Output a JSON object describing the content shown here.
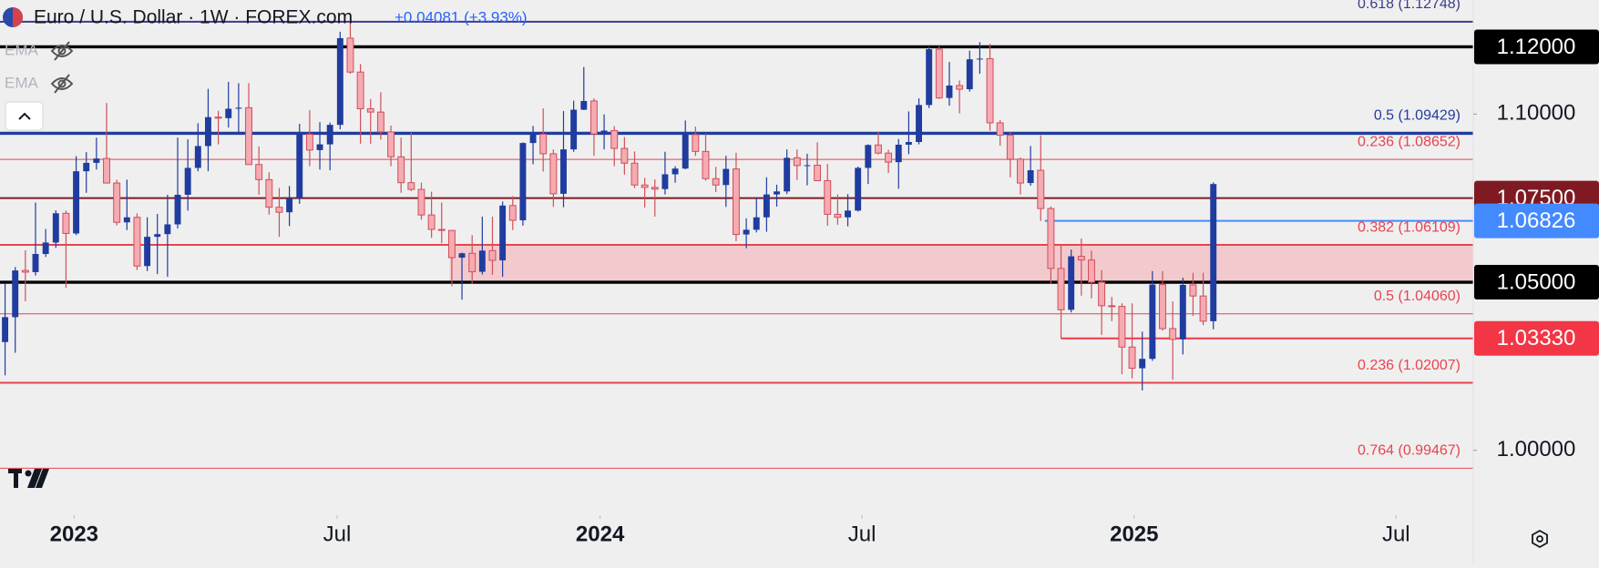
{
  "header": {
    "symbol": "Euro / U.S. Dollar · 1W · FOREX.com",
    "change": "+0.04081 (+3.93%)",
    "indicators": [
      "EMA",
      "EMA"
    ]
  },
  "chart_data": {
    "type": "candlestick",
    "x": [
      0,
      1,
      2,
      3,
      4,
      5,
      6,
      7,
      8,
      9,
      10,
      11,
      12,
      13,
      14,
      15,
      16,
      17,
      18,
      19,
      20,
      21,
      22,
      23,
      24,
      25,
      26,
      27,
      28,
      29,
      30,
      31,
      32,
      33,
      34,
      35,
      36,
      37,
      38,
      39,
      40,
      41,
      42,
      43,
      44,
      45,
      46,
      47,
      48,
      49,
      50,
      51,
      52,
      53,
      54,
      55,
      56,
      57,
      58,
      59,
      60,
      61,
      62,
      63,
      64,
      65,
      66,
      67,
      68,
      69,
      70,
      71,
      72,
      73,
      74,
      75,
      76,
      77,
      78,
      79,
      80,
      81,
      82,
      83,
      84,
      85,
      86,
      87,
      88,
      89,
      90,
      91,
      92,
      93,
      94,
      95,
      96,
      97,
      98,
      99,
      100,
      101,
      102,
      103,
      104,
      105,
      106,
      107,
      108,
      109,
      110,
      111,
      112,
      113,
      114,
      115,
      116,
      117,
      118,
      119
    ],
    "open": [
      1.0322,
      1.0396,
      1.0535,
      1.053,
      1.0584,
      1.0618,
      1.0705,
      1.0645,
      1.083,
      1.0855,
      1.0868,
      1.0795,
      1.0678,
      1.0693,
      1.0548,
      1.0635,
      1.0643,
      1.0672,
      1.076,
      1.084,
      1.0905,
      1.0991,
      1.0988,
      1.1016,
      1.1019,
      1.085,
      1.0805,
      1.0723,
      1.0708,
      1.075,
      1.094,
      1.0893,
      1.091,
      1.0968,
      1.1226,
      1.1125,
      1.1016,
      1.1006,
      1.0947,
      1.0873,
      1.0796,
      1.0776,
      1.07,
      1.0657,
      1.0654,
      1.0573,
      1.0586,
      1.0531,
      1.0594,
      1.0565,
      1.0728,
      1.0684,
      1.0914,
      1.094,
      1.0882,
      1.0763,
      1.0895,
      1.1013,
      1.1039,
      1.0941,
      1.0951,
      1.0898,
      1.0854,
      1.0789,
      1.0782,
      1.0777,
      1.0821,
      1.0838,
      1.0939,
      1.0889,
      1.0808,
      1.0789,
      1.0837,
      1.0642,
      1.0656,
      1.0693,
      1.0761,
      1.077,
      1.087,
      1.0847,
      1.0848,
      1.0802,
      1.0702,
      1.0693,
      1.0713,
      1.084,
      1.0908,
      1.0884,
      1.0857,
      1.0909,
      1.0917,
      1.1027,
      1.1193,
      1.1048,
      1.1085,
      1.1074,
      1.1163,
      1.1165,
      1.0974,
      1.0937,
      1.0866,
      1.0795,
      1.0833,
      1.0719,
      1.0541,
      1.0418,
      1.0577,
      1.0566,
      1.05,
      1.043,
      1.0428,
      1.0307,
      1.0244,
      1.0272,
      1.0493,
      1.0362,
      1.033,
      1.0492,
      1.0459,
      1.0384
    ],
    "high": [
      1.0497,
      1.0545,
      1.0595,
      1.0737,
      1.0658,
      1.0714,
      1.0713,
      1.0875,
      1.0887,
      1.093,
      1.1033,
      1.0805,
      1.0805,
      1.0705,
      1.0693,
      1.0703,
      1.076,
      1.093,
      1.0925,
      1.0973,
      1.1075,
      1.101,
      1.1096,
      1.1092,
      1.1092,
      1.0904,
      1.0827,
      1.078,
      1.0786,
      1.0971,
      1.1012,
      1.0976,
      1.0975,
      1.1245,
      1.1276,
      1.1149,
      1.1045,
      1.1065,
      1.0966,
      1.093,
      1.0945,
      1.0796,
      1.0769,
      1.0737,
      1.0655,
      1.0588,
      1.064,
      1.0695,
      1.0695,
      1.074,
      1.0756,
      1.0916,
      1.0965,
      1.1017,
      1.0895,
      1.1009,
      1.104,
      1.114,
      1.1047,
      1.0999,
      1.0964,
      1.0932,
      1.0889,
      1.081,
      1.0806,
      1.0888,
      1.0845,
      1.0981,
      1.0963,
      1.0942,
      1.0843,
      1.0876,
      1.0885,
      1.069,
      1.0753,
      1.0812,
      1.079,
      1.0895,
      1.0895,
      1.0882,
      1.0916,
      1.0852,
      1.0761,
      1.0762,
      1.0844,
      1.091,
      1.0948,
      1.0894,
      1.0926,
      1.1008,
      1.1047,
      1.1202,
      1.1202,
      1.1155,
      1.11,
      1.1189,
      1.1214,
      1.1209,
      1.0982,
      1.0947,
      1.0871,
      1.0905,
      1.0937,
      1.0725,
      1.0609,
      1.0597,
      1.063,
      1.0594,
      1.0536,
      1.0456,
      1.0437,
      1.0437,
      1.0353,
      1.0533,
      1.0533,
      1.0443,
      1.0513,
      1.0528,
      1.0528,
      1.0797
    ],
    "low": [
      1.0223,
      1.029,
      1.0443,
      1.052,
      1.0575,
      1.0602,
      1.0483,
      1.064,
      1.0766,
      1.0835,
      1.0795,
      1.0669,
      1.0655,
      1.0536,
      1.0533,
      1.0524,
      1.0516,
      1.066,
      1.0713,
      1.083,
      1.083,
      1.091,
      1.096,
      1.0942,
      1.085,
      1.076,
      1.0701,
      1.0635,
      1.0667,
      1.0733,
      1.0845,
      1.0835,
      1.0833,
      1.0955,
      1.112,
      1.0912,
      1.0912,
      1.0924,
      1.0845,
      1.0766,
      1.0771,
      1.0686,
      1.0632,
      1.0616,
      1.0488,
      1.0448,
      1.0496,
      1.0523,
      1.0522,
      1.0516,
      1.0655,
      1.0668,
      1.0851,
      1.0829,
      1.0724,
      1.0723,
      1.0888,
      1.1012,
      1.0876,
      1.0895,
      1.0845,
      1.082,
      1.078,
      1.0722,
      1.0695,
      1.0761,
      1.0796,
      1.0836,
      1.0876,
      1.0802,
      1.0768,
      1.0724,
      1.0622,
      1.0601,
      1.0648,
      1.065,
      1.0725,
      1.0762,
      1.0804,
      1.0788,
      1.0801,
      1.0668,
      1.0671,
      1.0666,
      1.071,
      1.0792,
      1.088,
      1.0825,
      1.0778,
      1.0881,
      1.091,
      1.1018,
      1.1045,
      1.1025,
      1.1002,
      1.1067,
      1.112,
      1.0951,
      1.0906,
      1.0812,
      1.0761,
      1.0787,
      1.0682,
      1.0496,
      1.0333,
      1.041,
      1.046,
      1.0452,
      1.0343,
      1.0384,
      1.0226,
      1.0214,
      1.0178,
      1.0266,
      1.0356,
      1.021,
      1.0285,
      1.04,
      1.0372,
      1.036
    ],
    "close": [
      1.0396,
      1.0535,
      1.053,
      1.0584,
      1.0618,
      1.0705,
      1.0645,
      1.083,
      1.0855,
      1.0868,
      1.0795,
      1.0678,
      1.0693,
      1.0548,
      1.0635,
      1.0643,
      1.0672,
      1.076,
      1.084,
      1.0905,
      1.0991,
      1.0988,
      1.1016,
      1.1019,
      1.085,
      1.0805,
      1.0723,
      1.0708,
      1.075,
      1.094,
      1.0893,
      1.091,
      1.0968,
      1.1226,
      1.1125,
      1.1016,
      1.1006,
      1.0947,
      1.0873,
      1.0796,
      1.0776,
      1.07,
      1.0657,
      1.0654,
      1.0573,
      1.0586,
      1.0531,
      1.0594,
      1.0565,
      1.0728,
      1.0684,
      1.0914,
      1.094,
      1.0882,
      1.0763,
      1.0895,
      1.1013,
      1.1039,
      1.0941,
      1.0951,
      1.0898,
      1.0854,
      1.0789,
      1.0782,
      1.0777,
      1.0821,
      1.0838,
      1.0939,
      1.0889,
      1.0808,
      1.0789,
      1.0837,
      1.0642,
      1.0656,
      1.0693,
      1.0761,
      1.077,
      1.087,
      1.0847,
      1.0848,
      1.0802,
      1.0702,
      1.0693,
      1.0713,
      1.084,
      1.0908,
      1.0884,
      1.0857,
      1.0909,
      1.0917,
      1.1027,
      1.1193,
      1.1048,
      1.1085,
      1.1074,
      1.1163,
      1.1165,
      1.0974,
      1.0937,
      1.0866,
      1.0795,
      1.0833,
      1.0719,
      1.0541,
      1.0418,
      1.0577,
      1.0566,
      1.05,
      1.043,
      1.0428,
      1.0307,
      1.0244,
      1.0272,
      1.0493,
      1.0362,
      1.033,
      1.0492,
      1.0459,
      1.0384,
      1.0792
    ],
    "up_color": "#1f3c9e",
    "down_color": "#f6aab1",
    "down_line": "#d04f5b",
    "xlim": [
      -0.5,
      144.6
    ],
    "xticks": [
      {
        "value": 6.8,
        "label": "2023"
      },
      {
        "value": 32.7,
        "label": "Jul"
      },
      {
        "value": 58.6,
        "label": "2024"
      },
      {
        "value": 84.4,
        "label": "Jul"
      },
      {
        "value": 111.2,
        "label": "2025"
      },
      {
        "value": 137,
        "label": "Jul"
      }
    ],
    "ylim": [
      0.98394,
      1.13394
    ],
    "yticks": [
      {
        "value": 1.0,
        "label": "1.00000"
      },
      {
        "value": 1.1,
        "label": "1.10000"
      }
    ],
    "grid": false,
    "zone": {
      "from": 1.05,
      "to": 1.06109,
      "x_from": 43.8,
      "color": "#f2c3c7"
    },
    "fib_levels": [
      {
        "value": 1.12748,
        "label": "0.618 (1.12748)",
        "color": "#3b3a8f",
        "style": "medium"
      },
      {
        "value": 1.09429,
        "label": "0.5 (1.09429)",
        "color": "#1f3c9e",
        "style": "thick"
      },
      {
        "value": 1.08652,
        "label": "0.236 (1.08652)",
        "color": "#e8434f",
        "style": "thin"
      },
      {
        "value": 1.06109,
        "label": "0.382 (1.06109)",
        "color": "#e8434f",
        "style": "medium"
      },
      {
        "value": 1.0406,
        "label": "0.5 (1.04060)",
        "color": "#e8434f",
        "style": "thin"
      },
      {
        "value": 1.02007,
        "label": "0.236 (1.02007)",
        "color": "#e8434f",
        "style": "medium"
      },
      {
        "value": 0.99467,
        "label": "0.764 (0.99467)",
        "color": "#e8434f",
        "style": "thin"
      }
    ],
    "levels": [
      {
        "value": 1.12,
        "label": "1.12000",
        "color": "#000000",
        "style": "thick"
      },
      {
        "value": 1.075,
        "label": "1.07500",
        "color": "#7f1a22",
        "style": "medium"
      },
      {
        "value": 1.06826,
        "label": "1.06826",
        "color": "#448aff",
        "style": "medium",
        "x_from": 102.4
      },
      {
        "value": 1.05,
        "label": "1.05000",
        "color": "#000000",
        "style": "thick"
      },
      {
        "value": 1.0333,
        "label": "1.03330",
        "color": "#f23645",
        "style": "medium",
        "x_from": 104
      }
    ]
  }
}
